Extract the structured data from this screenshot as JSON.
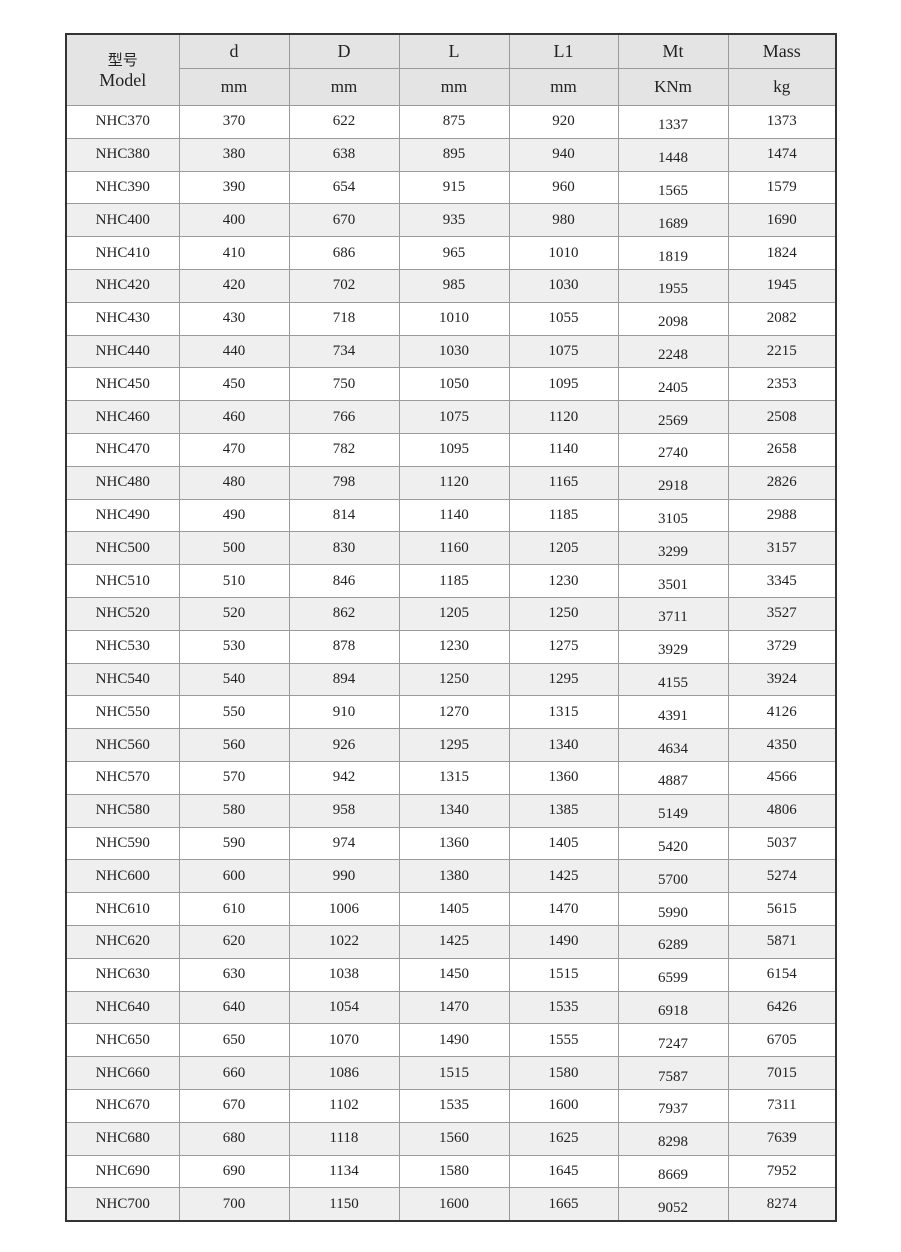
{
  "table": {
    "header": {
      "model": [
        "型号",
        "Model"
      ],
      "columns": [
        "d",
        "D",
        "L",
        "L1",
        "Mt",
        "Mass"
      ],
      "units": [
        "mm",
        "mm",
        "mm",
        "mm",
        "KNm",
        "kg"
      ]
    },
    "rows": [
      [
        "NHC370",
        370,
        622,
        875,
        920,
        1337,
        1373
      ],
      [
        "NHC380",
        380,
        638,
        895,
        940,
        1448,
        1474
      ],
      [
        "NHC390",
        390,
        654,
        915,
        960,
        1565,
        1579
      ],
      [
        "NHC400",
        400,
        670,
        935,
        980,
        1689,
        1690
      ],
      [
        "NHC410",
        410,
        686,
        965,
        1010,
        1819,
        1824
      ],
      [
        "NHC420",
        420,
        702,
        985,
        1030,
        1955,
        1945
      ],
      [
        "NHC430",
        430,
        718,
        1010,
        1055,
        2098,
        2082
      ],
      [
        "NHC440",
        440,
        734,
        1030,
        1075,
        2248,
        2215
      ],
      [
        "NHC450",
        450,
        750,
        1050,
        1095,
        2405,
        2353
      ],
      [
        "NHC460",
        460,
        766,
        1075,
        1120,
        2569,
        2508
      ],
      [
        "NHC470",
        470,
        782,
        1095,
        1140,
        2740,
        2658
      ],
      [
        "NHC480",
        480,
        798,
        1120,
        1165,
        2918,
        2826
      ],
      [
        "NHC490",
        490,
        814,
        1140,
        1185,
        3105,
        2988
      ],
      [
        "NHC500",
        500,
        830,
        1160,
        1205,
        3299,
        3157
      ],
      [
        "NHC510",
        510,
        846,
        1185,
        1230,
        3501,
        3345
      ],
      [
        "NHC520",
        520,
        862,
        1205,
        1250,
        3711,
        3527
      ],
      [
        "NHC530",
        530,
        878,
        1230,
        1275,
        3929,
        3729
      ],
      [
        "NHC540",
        540,
        894,
        1250,
        1295,
        4155,
        3924
      ],
      [
        "NHC550",
        550,
        910,
        1270,
        1315,
        4391,
        4126
      ],
      [
        "NHC560",
        560,
        926,
        1295,
        1340,
        4634,
        4350
      ],
      [
        "NHC570",
        570,
        942,
        1315,
        1360,
        4887,
        4566
      ],
      [
        "NHC580",
        580,
        958,
        1340,
        1385,
        5149,
        4806
      ],
      [
        "NHC590",
        590,
        974,
        1360,
        1405,
        5420,
        5037
      ],
      [
        "NHC600",
        600,
        990,
        1380,
        1425,
        5700,
        5274
      ],
      [
        "NHC610",
        610,
        1006,
        1405,
        1470,
        5990,
        5615
      ],
      [
        "NHC620",
        620,
        1022,
        1425,
        1490,
        6289,
        5871
      ],
      [
        "NHC630",
        630,
        1038,
        1450,
        1515,
        6599,
        6154
      ],
      [
        "NHC640",
        640,
        1054,
        1470,
        1535,
        6918,
        6426
      ],
      [
        "NHC650",
        650,
        1070,
        1490,
        1555,
        7247,
        6705
      ],
      [
        "NHC660",
        660,
        1086,
        1515,
        1580,
        7587,
        7015
      ],
      [
        "NHC670",
        670,
        1102,
        1535,
        1600,
        7937,
        7311
      ],
      [
        "NHC680",
        680,
        1118,
        1560,
        1625,
        8298,
        7639
      ],
      [
        "NHC690",
        690,
        1134,
        1580,
        1645,
        8669,
        7952
      ],
      [
        "NHC700",
        700,
        1150,
        1600,
        1665,
        9052,
        8274
      ]
    ]
  }
}
